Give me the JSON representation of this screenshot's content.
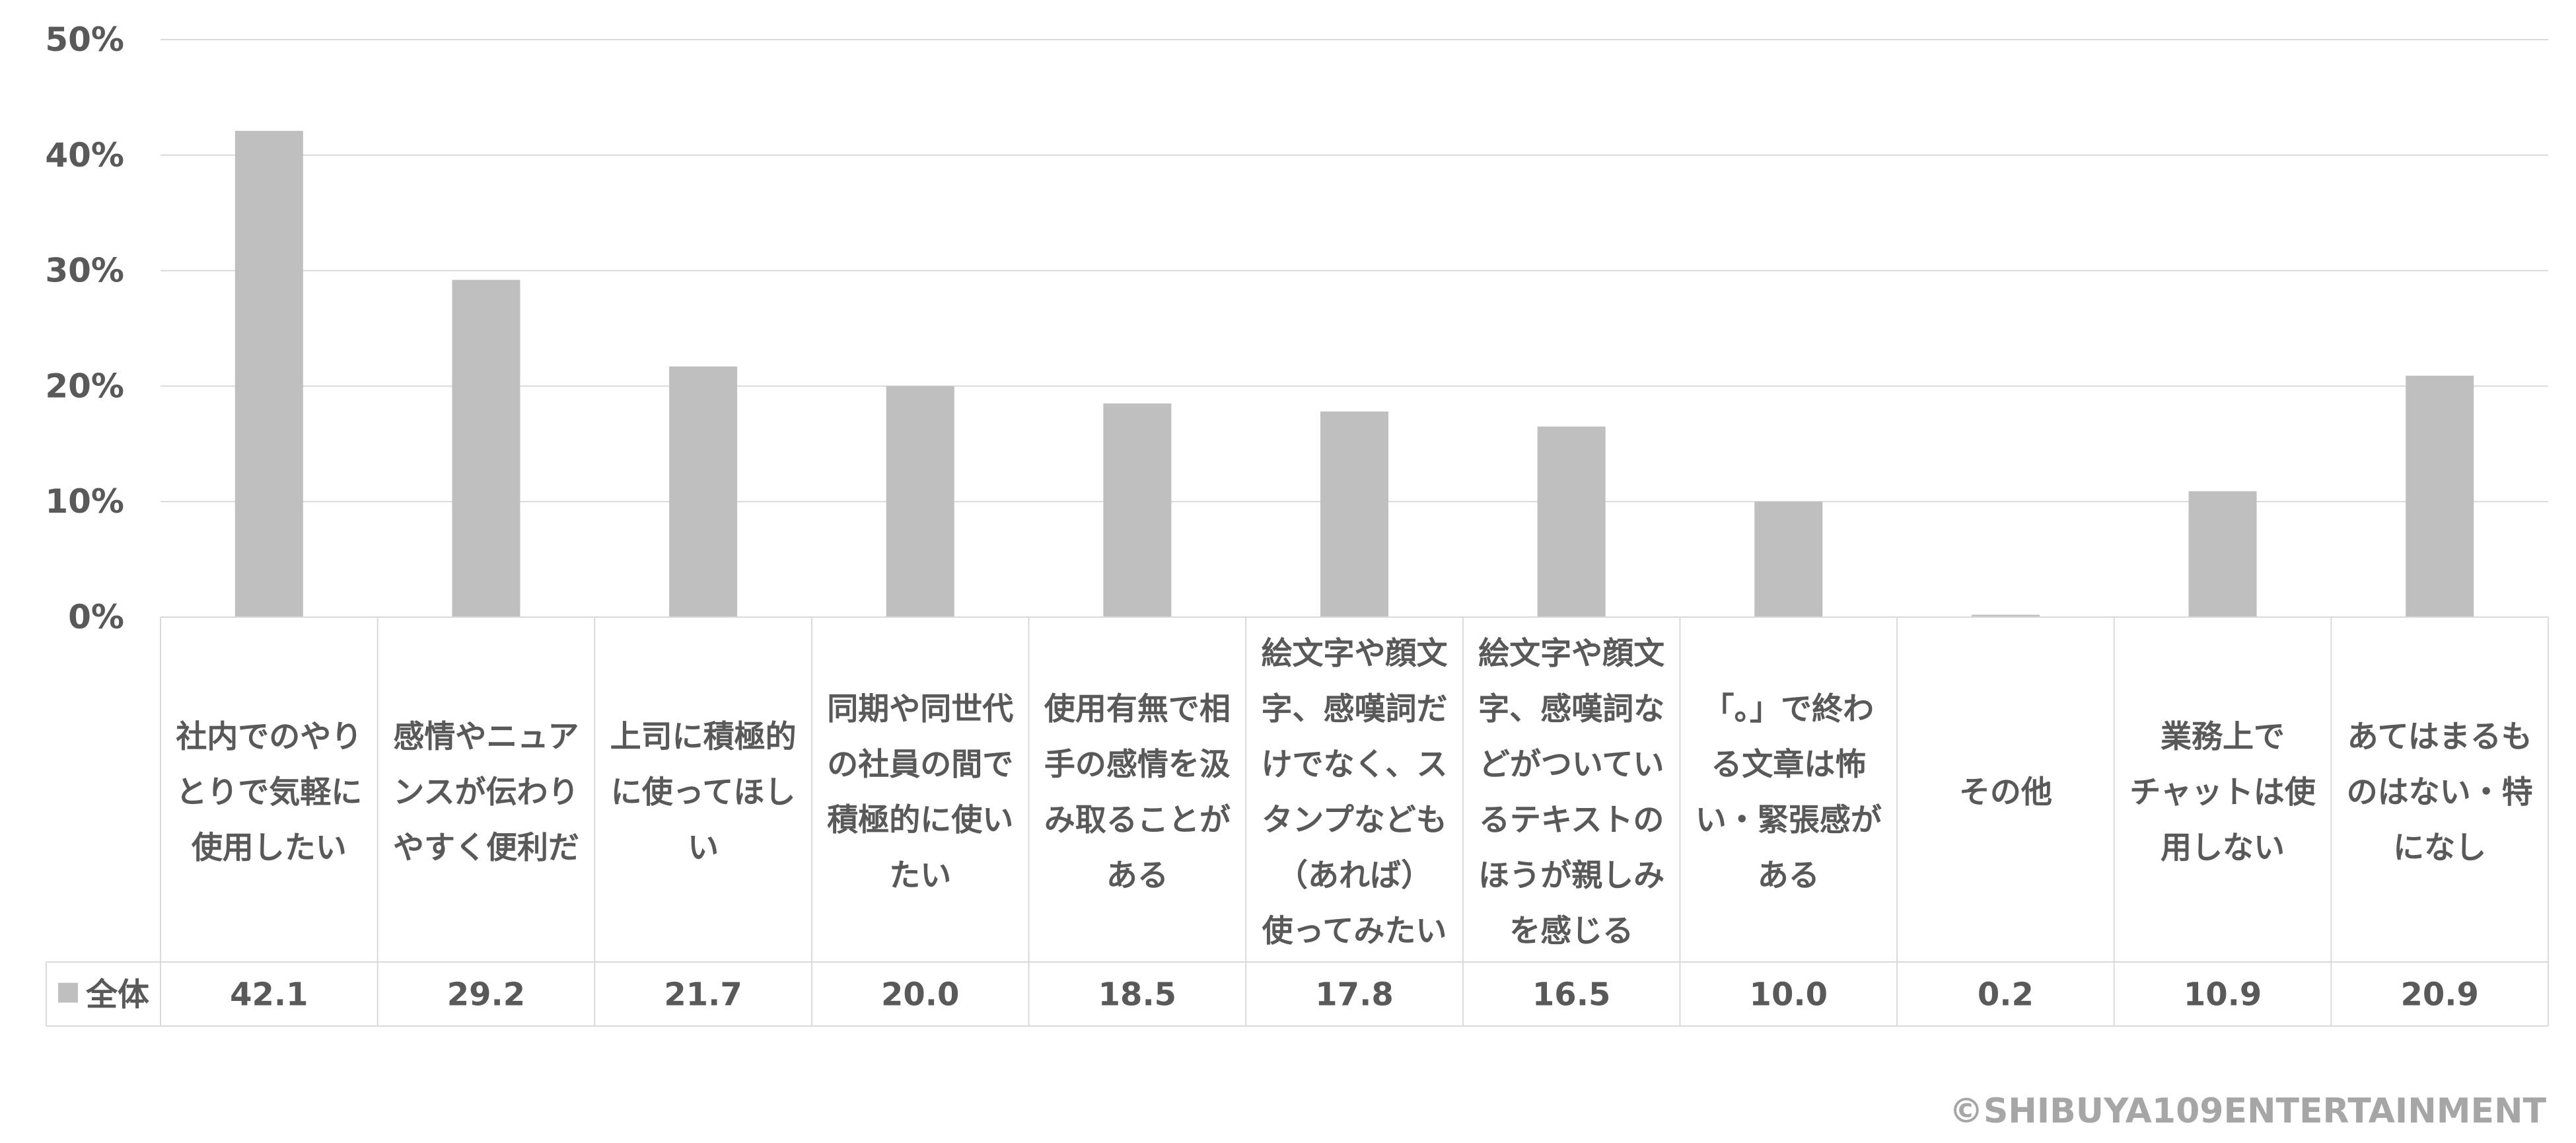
{
  "chart_data": {
    "type": "bar",
    "categories": [
      [
        "社内でのやり",
        "とりで気軽に",
        "使用したい"
      ],
      [
        "感情やニュア",
        "ンスが伝わり",
        "やすく便利だ"
      ],
      [
        "上司に積極的",
        "に使ってほし",
        "い"
      ],
      [
        "同期や同世代",
        "の社員の間で",
        "積極的に使い",
        "たい"
      ],
      [
        "使用有無で相",
        "手の感情を汲",
        "み取ることが",
        "ある"
      ],
      [
        "絵文字や顔文",
        "字、感嘆詞だ",
        "けでなく、ス",
        "タンプなども",
        "（あれば）",
        "使ってみたい"
      ],
      [
        "絵文字や顔文",
        "字、感嘆詞な",
        "どがついてい",
        "るテキストの",
        "ほうが親しみ",
        "を感じる"
      ],
      [
        "「。」で終わ",
        "る文章は怖",
        "い・緊張感が",
        "ある"
      ],
      [
        "その他"
      ],
      [
        "業務上で",
        "チャットは使",
        "用しない"
      ],
      [
        "あてはまるも",
        "のはない・特",
        "になし"
      ]
    ],
    "series": [
      {
        "name": "全体",
        "values": [
          42.1,
          29.2,
          21.7,
          20.0,
          18.5,
          17.8,
          16.5,
          10.0,
          0.2,
          10.9,
          20.9
        ],
        "color": "#bfbfbf"
      }
    ],
    "value_labels": [
      "42.1",
      "29.2",
      "21.7",
      "20.0",
      "18.5",
      "17.8",
      "16.5",
      "10.0",
      "0.2",
      "10.9",
      "20.9"
    ],
    "y_ticks": [
      "0%",
      "10%",
      "20%",
      "30%",
      "40%",
      "50%"
    ],
    "ylim": [
      0,
      50
    ],
    "grid": true,
    "legend": "data-table"
  },
  "footer": {
    "copyright": "©SHIBUYA109ENTERTAINMENT"
  }
}
